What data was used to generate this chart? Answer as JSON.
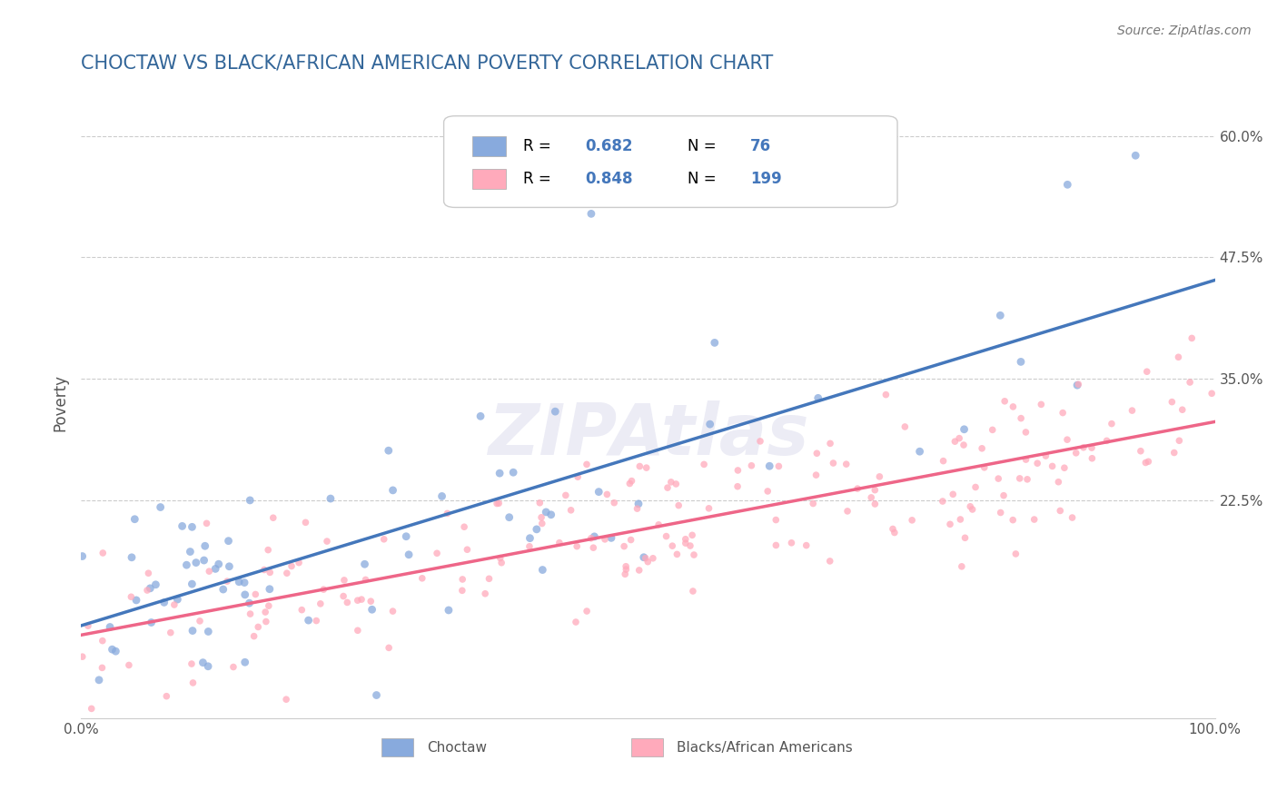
{
  "title": "CHOCTAW VS BLACK/AFRICAN AMERICAN POVERTY CORRELATION CHART",
  "source_text": "Source: ZipAtlas.com",
  "ylabel": "Poverty",
  "xlim": [
    0,
    100
  ],
  "ylim": [
    0,
    65
  ],
  "yticks": [
    0,
    22.5,
    35.0,
    47.5,
    60.0
  ],
  "ytick_labels": [
    "",
    "22.5%",
    "35.0%",
    "47.5%",
    "60.0%"
  ],
  "watermark": "ZIPAtlas",
  "blue_R": 0.682,
  "blue_N": 76,
  "pink_R": 0.848,
  "pink_N": 199,
  "legend_label_blue": "Choctaw",
  "legend_label_pink": "Blacks/African Americans",
  "background_color": "#FFFFFF",
  "grid_color": "#CCCCCC",
  "title_color": "#336699",
  "blue_line_color": "#4477BB",
  "pink_line_color": "#EE6688",
  "blue_scatter_color": "#88AADD",
  "pink_scatter_color": "#FFAABB",
  "legend_text_color": "#4477BB"
}
